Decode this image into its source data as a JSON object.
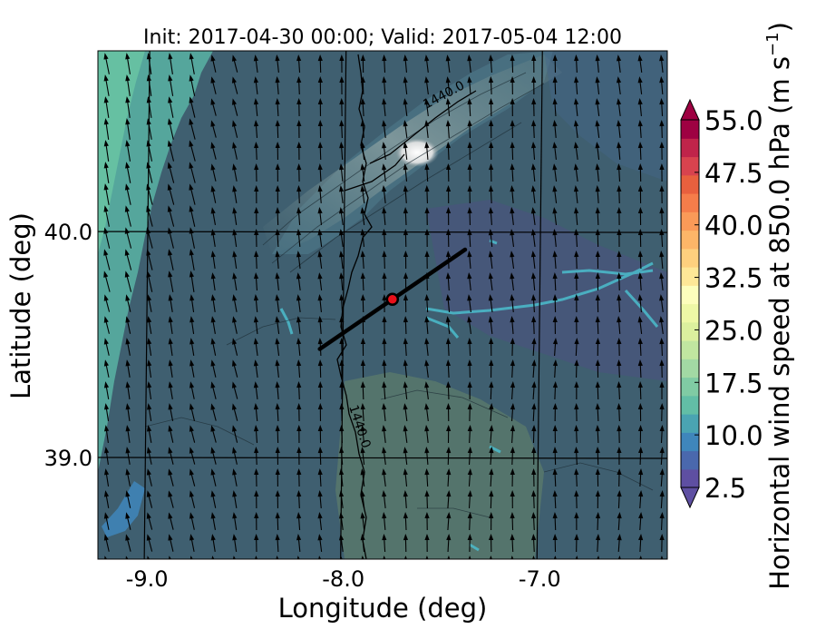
{
  "chart_data": {
    "type": "heatmap",
    "title": "Init: 2017-04-30 00:00; Valid: 2017-05-04 12:00",
    "xlabel": "Longitude (deg)",
    "ylabel": "Latitude (deg)",
    "xlim": [
      -9.25,
      -6.35
    ],
    "ylim": [
      38.55,
      40.8
    ],
    "x_ticks": [
      -9.0,
      -8.0,
      -7.0
    ],
    "x_tick_labels": [
      "-9.0",
      "-8.0",
      "-7.0"
    ],
    "y_ticks": [
      39.0,
      40.0
    ],
    "y_tick_labels": [
      "39.0",
      "40.0"
    ],
    "grid": true,
    "colorbar": {
      "label": "Horizontal wind speed at 850.0 hPa (m s",
      "label_superscript": "−1",
      "label_close": ")",
      "min": 2.5,
      "max": 55.0,
      "step": 2.5,
      "ticks": [
        2.5,
        10.0,
        17.5,
        25.0,
        32.5,
        40.0,
        47.5,
        55.0
      ],
      "tick_labels": [
        "2.5",
        "10.0",
        "17.5",
        "25.0",
        "32.5",
        "40.0",
        "47.5",
        "55.0"
      ],
      "extend": "both",
      "colors": [
        "#5e4fa2",
        "#4a68ad",
        "#3f86bb",
        "#4aa4b2",
        "#62bea6",
        "#80cba4",
        "#a2d9a4",
        "#c1e6a0",
        "#dcf09e",
        "#eef8a6",
        "#fdfebc",
        "#fee797",
        "#fed07e",
        "#fdb668",
        "#fa9a58",
        "#f57d4a",
        "#e8603e",
        "#d8434e",
        "#c0244a",
        "#9e0142"
      ]
    },
    "contour_labels": [
      "1440.0",
      "1440.0"
    ],
    "cross_section": {
      "start": [
        -8.12,
        39.48
      ],
      "end": [
        -7.38,
        39.92
      ]
    },
    "marker": {
      "lon": -7.75,
      "lat": 39.7,
      "color": "#e8101a"
    }
  }
}
